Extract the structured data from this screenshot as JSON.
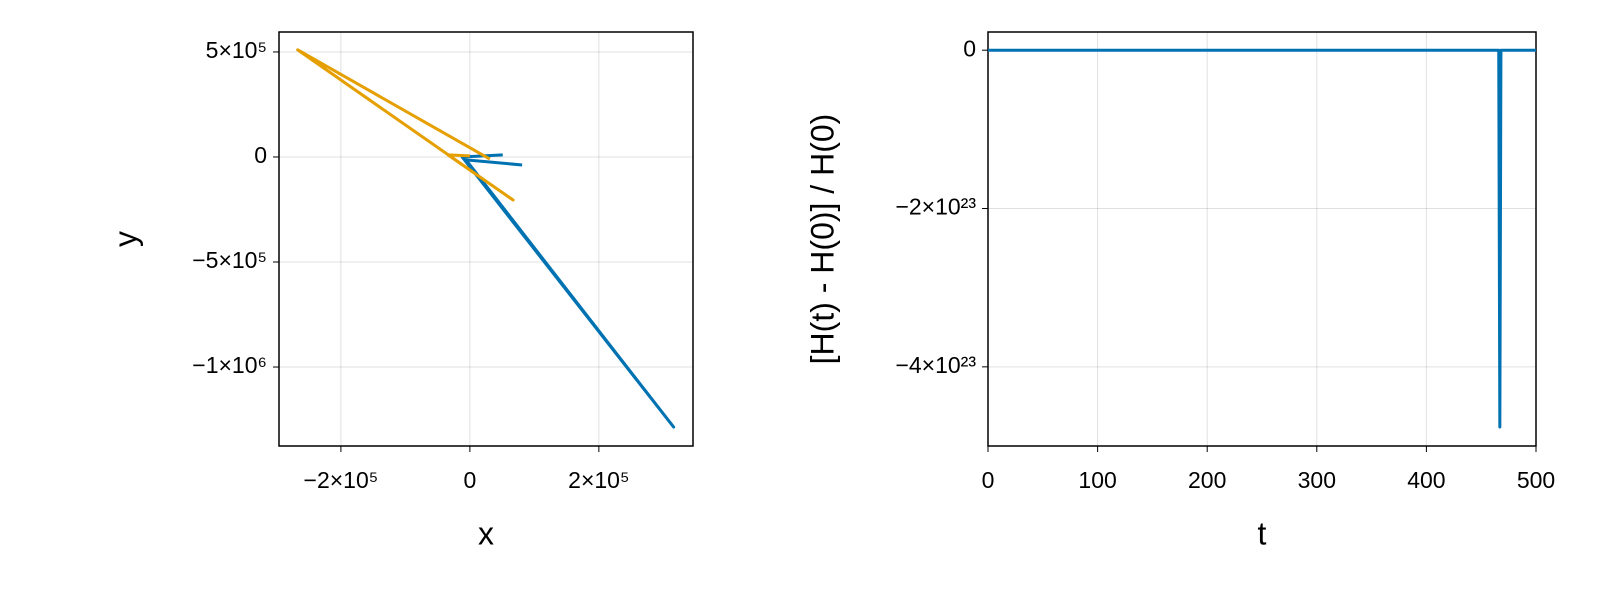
{
  "chart_data": [
    {
      "type": "line",
      "xlabel": "x",
      "ylabel": "y",
      "xlim": [
        -296000,
        346000
      ],
      "ylim": [
        -1376000,
        595000
      ],
      "xticks": [
        {
          "value": -200000,
          "label": "−2×10⁵"
        },
        0,
        {
          "value": 200000,
          "label": "2×10⁵"
        }
      ],
      "yticks": [
        {
          "value": 500000,
          "label": "5×10⁵"
        },
        0,
        {
          "value": -500000,
          "label": "−5×10⁵"
        },
        {
          "value": -1000000,
          "label": "−1×10⁶"
        }
      ],
      "grid": true,
      "series": [
        {
          "color": "#0072b2",
          "x": [
            51000,
            -12000,
            316000,
            -6000,
            81000
          ],
          "values": [
            10000,
            0,
            -1286000,
            -14000,
            -38000
          ]
        },
        {
          "color": "#e69f00",
          "x": [
            31000,
            -267000,
            67000,
            -34000,
            0
          ],
          "values": [
            -10000,
            510000,
            -205000,
            10000,
            5000
          ]
        }
      ]
    },
    {
      "type": "line",
      "xlabel": "t",
      "ylabel": "[H(t) - H(0)] / H(0)",
      "xlim": [
        0,
        500
      ],
      "ylim": [
        -5e+23,
        2.3e+22
      ],
      "xticks": [
        0,
        100,
        200,
        300,
        400,
        500
      ],
      "yticks": [
        0,
        {
          "value": -2e+23,
          "label": "−2×10²³"
        },
        {
          "value": -4e+23,
          "label": "−4×10²³"
        }
      ],
      "grid": true,
      "x": [
        0,
        466,
        467,
        468,
        500
      ],
      "series": [
        {
          "color": "#0072b2",
          "values": [
            0,
            0,
            -4.76e+23,
            0,
            0
          ]
        }
      ]
    }
  ]
}
